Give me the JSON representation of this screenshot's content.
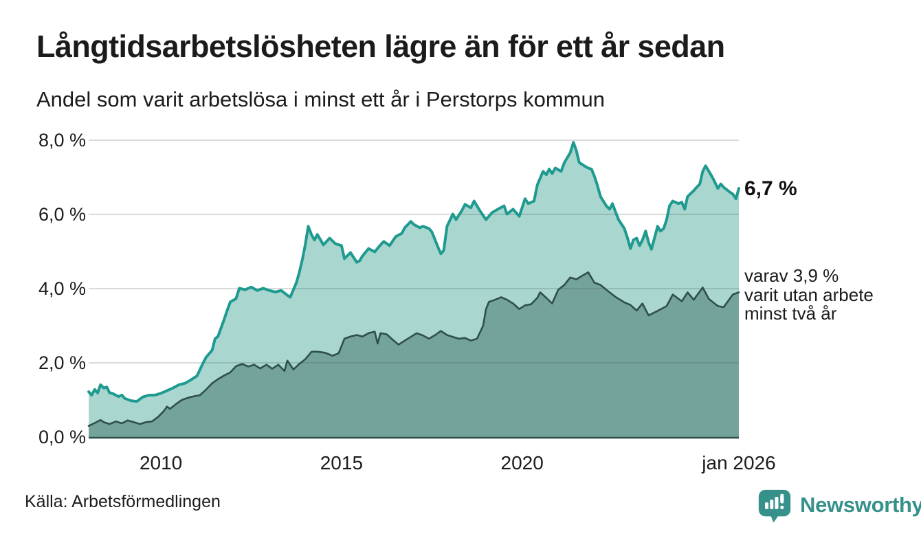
{
  "header": {
    "title": "Långtidsarbetslösheten lägre än för ett år sedan",
    "subtitle": "Andel som varit arbetslösa i minst ett år i Perstorps kommun"
  },
  "annotations": {
    "end_value": "6,7 %",
    "note_lines": [
      "varav 3,9 %",
      "varit utan arbete",
      "minst två år"
    ]
  },
  "footer": {
    "source": "Källa: Arbetsförmedlingen",
    "logo_text": "Newsworthy"
  },
  "colors": {
    "brand_teal": "#35918a",
    "line_1yr": "#1e9a8f",
    "fill_1yr": "#aad6d0",
    "line_2yr": "#2f4f4a",
    "fill_2yr": "#74a39c",
    "axis": "#2f4f4a",
    "grid": "#dfe4e4"
  },
  "chart_data": {
    "type": "area",
    "title": "Långtidsarbetslösheten lägre än för ett år sedan",
    "subtitle": "Andel som varit arbetslösa i minst ett år i Perstorps kommun",
    "unit": "%",
    "grid": true,
    "x_range": [
      2008,
      2026
    ],
    "ylim": [
      0,
      8
    ],
    "y_axis": {
      "ticks": [
        "8,0 %",
        "6,0 %",
        "4,0 %",
        "2,0 %",
        "0,0 %"
      ],
      "values": [
        8,
        6,
        4,
        2,
        0
      ]
    },
    "x_axis": {
      "ticks": [
        {
          "label": "2010",
          "year": 2010
        },
        {
          "label": "2015",
          "year": 2015
        },
        {
          "label": "2020",
          "year": 2020
        },
        {
          "label": "jan 2026",
          "year": 2026
        }
      ]
    },
    "series": [
      {
        "name": "Arbetslösa minst ett år",
        "end_label": "6,7 %",
        "color": "#1e9a8f",
        "fill": "#aad6d0",
        "points": [
          [
            2008.0,
            1.22
          ],
          [
            2008.08,
            1.13
          ],
          [
            2008.17,
            1.28
          ],
          [
            2008.25,
            1.19
          ],
          [
            2008.33,
            1.41
          ],
          [
            2008.42,
            1.32
          ],
          [
            2008.5,
            1.35
          ],
          [
            2008.58,
            1.19
          ],
          [
            2008.67,
            1.17
          ],
          [
            2008.83,
            1.09
          ],
          [
            2008.92,
            1.13
          ],
          [
            2009.0,
            1.04
          ],
          [
            2009.17,
            0.98
          ],
          [
            2009.33,
            0.96
          ],
          [
            2009.5,
            1.08
          ],
          [
            2009.67,
            1.13
          ],
          [
            2009.83,
            1.13
          ],
          [
            2010.0,
            1.18
          ],
          [
            2010.17,
            1.25
          ],
          [
            2010.33,
            1.32
          ],
          [
            2010.5,
            1.41
          ],
          [
            2010.67,
            1.45
          ],
          [
            2010.83,
            1.54
          ],
          [
            2011.0,
            1.65
          ],
          [
            2011.17,
            2.0
          ],
          [
            2011.25,
            2.15
          ],
          [
            2011.42,
            2.34
          ],
          [
            2011.5,
            2.65
          ],
          [
            2011.58,
            2.71
          ],
          [
            2011.75,
            3.17
          ],
          [
            2011.83,
            3.4
          ],
          [
            2011.92,
            3.64
          ],
          [
            2012.08,
            3.73
          ],
          [
            2012.17,
            4.01
          ],
          [
            2012.33,
            3.97
          ],
          [
            2012.5,
            4.04
          ],
          [
            2012.67,
            3.95
          ],
          [
            2012.83,
            4.01
          ],
          [
            2013.0,
            3.95
          ],
          [
            2013.17,
            3.91
          ],
          [
            2013.33,
            3.95
          ],
          [
            2013.5,
            3.82
          ],
          [
            2013.58,
            3.77
          ],
          [
            2013.75,
            4.16
          ],
          [
            2013.83,
            4.43
          ],
          [
            2013.92,
            4.8
          ],
          [
            2014.0,
            5.2
          ],
          [
            2014.08,
            5.68
          ],
          [
            2014.17,
            5.45
          ],
          [
            2014.25,
            5.31
          ],
          [
            2014.33,
            5.46
          ],
          [
            2014.5,
            5.18
          ],
          [
            2014.67,
            5.36
          ],
          [
            2014.83,
            5.21
          ],
          [
            2015.0,
            5.16
          ],
          [
            2015.08,
            4.81
          ],
          [
            2015.25,
            4.97
          ],
          [
            2015.42,
            4.71
          ],
          [
            2015.5,
            4.75
          ],
          [
            2015.58,
            4.88
          ],
          [
            2015.75,
            5.08
          ],
          [
            2015.92,
            4.99
          ],
          [
            2016.08,
            5.18
          ],
          [
            2016.17,
            5.27
          ],
          [
            2016.33,
            5.16
          ],
          [
            2016.5,
            5.4
          ],
          [
            2016.67,
            5.49
          ],
          [
            2016.75,
            5.64
          ],
          [
            2016.92,
            5.81
          ],
          [
            2017.0,
            5.73
          ],
          [
            2017.17,
            5.64
          ],
          [
            2017.25,
            5.68
          ],
          [
            2017.42,
            5.62
          ],
          [
            2017.5,
            5.53
          ],
          [
            2017.67,
            5.12
          ],
          [
            2017.75,
            4.94
          ],
          [
            2017.83,
            5.03
          ],
          [
            2017.92,
            5.68
          ],
          [
            2018.08,
            6.01
          ],
          [
            2018.17,
            5.86
          ],
          [
            2018.33,
            6.1
          ],
          [
            2018.42,
            6.27
          ],
          [
            2018.58,
            6.18
          ],
          [
            2018.67,
            6.36
          ],
          [
            2018.83,
            6.1
          ],
          [
            2019.0,
            5.86
          ],
          [
            2019.17,
            6.05
          ],
          [
            2019.33,
            6.14
          ],
          [
            2019.5,
            6.23
          ],
          [
            2019.58,
            6.01
          ],
          [
            2019.75,
            6.14
          ],
          [
            2019.92,
            5.95
          ],
          [
            2020.08,
            6.42
          ],
          [
            2020.17,
            6.29
          ],
          [
            2020.33,
            6.36
          ],
          [
            2020.42,
            6.79
          ],
          [
            2020.58,
            7.16
          ],
          [
            2020.67,
            7.07
          ],
          [
            2020.75,
            7.22
          ],
          [
            2020.83,
            7.1
          ],
          [
            2020.92,
            7.25
          ],
          [
            2021.08,
            7.16
          ],
          [
            2021.17,
            7.4
          ],
          [
            2021.33,
            7.66
          ],
          [
            2021.42,
            7.94
          ],
          [
            2021.5,
            7.72
          ],
          [
            2021.58,
            7.4
          ],
          [
            2021.75,
            7.29
          ],
          [
            2021.83,
            7.25
          ],
          [
            2021.92,
            7.22
          ],
          [
            2022.0,
            7.03
          ],
          [
            2022.08,
            6.79
          ],
          [
            2022.17,
            6.48
          ],
          [
            2022.33,
            6.23
          ],
          [
            2022.42,
            6.14
          ],
          [
            2022.5,
            6.29
          ],
          [
            2022.58,
            6.08
          ],
          [
            2022.67,
            5.86
          ],
          [
            2022.83,
            5.62
          ],
          [
            2022.92,
            5.36
          ],
          [
            2023.0,
            5.08
          ],
          [
            2023.08,
            5.31
          ],
          [
            2023.17,
            5.36
          ],
          [
            2023.25,
            5.16
          ],
          [
            2023.33,
            5.31
          ],
          [
            2023.42,
            5.55
          ],
          [
            2023.5,
            5.25
          ],
          [
            2023.58,
            5.06
          ],
          [
            2023.75,
            5.68
          ],
          [
            2023.83,
            5.55
          ],
          [
            2023.92,
            5.62
          ],
          [
            2024.0,
            5.86
          ],
          [
            2024.08,
            6.23
          ],
          [
            2024.17,
            6.36
          ],
          [
            2024.33,
            6.29
          ],
          [
            2024.42,
            6.33
          ],
          [
            2024.5,
            6.14
          ],
          [
            2024.58,
            6.48
          ],
          [
            2024.75,
            6.64
          ],
          [
            2024.83,
            6.73
          ],
          [
            2024.92,
            6.82
          ],
          [
            2025.0,
            7.16
          ],
          [
            2025.08,
            7.31
          ],
          [
            2025.25,
            7.03
          ],
          [
            2025.33,
            6.88
          ],
          [
            2025.42,
            6.7
          ],
          [
            2025.5,
            6.82
          ],
          [
            2025.58,
            6.73
          ],
          [
            2025.75,
            6.6
          ],
          [
            2025.83,
            6.55
          ],
          [
            2025.92,
            6.42
          ],
          [
            2026.0,
            6.7
          ]
        ]
      },
      {
        "name": "varav utan arbete minst två år",
        "end_label": "3,9 %",
        "color": "#2f4f4a",
        "fill": "#74a39c",
        "points": [
          [
            2008.0,
            0.3
          ],
          [
            2008.17,
            0.38
          ],
          [
            2008.33,
            0.46
          ],
          [
            2008.42,
            0.4
          ],
          [
            2008.58,
            0.35
          ],
          [
            2008.75,
            0.42
          ],
          [
            2008.92,
            0.37
          ],
          [
            2009.08,
            0.45
          ],
          [
            2009.25,
            0.4
          ],
          [
            2009.42,
            0.35
          ],
          [
            2009.58,
            0.4
          ],
          [
            2009.75,
            0.42
          ],
          [
            2009.92,
            0.54
          ],
          [
            2010.08,
            0.7
          ],
          [
            2010.17,
            0.82
          ],
          [
            2010.25,
            0.76
          ],
          [
            2010.42,
            0.89
          ],
          [
            2010.58,
            1.0
          ],
          [
            2010.75,
            1.06
          ],
          [
            2010.92,
            1.1
          ],
          [
            2011.08,
            1.13
          ],
          [
            2011.25,
            1.28
          ],
          [
            2011.42,
            1.45
          ],
          [
            2011.58,
            1.56
          ],
          [
            2011.75,
            1.66
          ],
          [
            2011.92,
            1.74
          ],
          [
            2012.08,
            1.91
          ],
          [
            2012.25,
            1.97
          ],
          [
            2012.42,
            1.9
          ],
          [
            2012.58,
            1.95
          ],
          [
            2012.75,
            1.85
          ],
          [
            2012.92,
            1.95
          ],
          [
            2013.08,
            1.84
          ],
          [
            2013.25,
            1.95
          ],
          [
            2013.42,
            1.78
          ],
          [
            2013.5,
            2.06
          ],
          [
            2013.67,
            1.82
          ],
          [
            2013.83,
            1.97
          ],
          [
            2014.0,
            2.1
          ],
          [
            2014.17,
            2.3
          ],
          [
            2014.33,
            2.3
          ],
          [
            2014.5,
            2.28
          ],
          [
            2014.58,
            2.26
          ],
          [
            2014.75,
            2.19
          ],
          [
            2014.92,
            2.26
          ],
          [
            2015.08,
            2.65
          ],
          [
            2015.25,
            2.71
          ],
          [
            2015.42,
            2.75
          ],
          [
            2015.58,
            2.71
          ],
          [
            2015.75,
            2.8
          ],
          [
            2015.92,
            2.84
          ],
          [
            2016.0,
            2.52
          ],
          [
            2016.08,
            2.8
          ],
          [
            2016.25,
            2.77
          ],
          [
            2016.42,
            2.62
          ],
          [
            2016.58,
            2.49
          ],
          [
            2016.75,
            2.6
          ],
          [
            2016.92,
            2.7
          ],
          [
            2017.08,
            2.8
          ],
          [
            2017.25,
            2.74
          ],
          [
            2017.42,
            2.65
          ],
          [
            2017.58,
            2.74
          ],
          [
            2017.75,
            2.86
          ],
          [
            2017.92,
            2.75
          ],
          [
            2018.08,
            2.7
          ],
          [
            2018.25,
            2.65
          ],
          [
            2018.42,
            2.67
          ],
          [
            2018.58,
            2.6
          ],
          [
            2018.75,
            2.65
          ],
          [
            2018.92,
            3.0
          ],
          [
            2019.0,
            3.45
          ],
          [
            2019.08,
            3.64
          ],
          [
            2019.25,
            3.7
          ],
          [
            2019.42,
            3.77
          ],
          [
            2019.58,
            3.7
          ],
          [
            2019.75,
            3.6
          ],
          [
            2019.92,
            3.45
          ],
          [
            2020.08,
            3.55
          ],
          [
            2020.25,
            3.58
          ],
          [
            2020.42,
            3.75
          ],
          [
            2020.5,
            3.9
          ],
          [
            2020.67,
            3.75
          ],
          [
            2020.83,
            3.6
          ],
          [
            2021.0,
            3.97
          ],
          [
            2021.17,
            4.1
          ],
          [
            2021.33,
            4.3
          ],
          [
            2021.5,
            4.25
          ],
          [
            2021.67,
            4.35
          ],
          [
            2021.83,
            4.44
          ],
          [
            2022.0,
            4.16
          ],
          [
            2022.17,
            4.1
          ],
          [
            2022.33,
            3.97
          ],
          [
            2022.58,
            3.78
          ],
          [
            2022.83,
            3.63
          ],
          [
            2023.0,
            3.56
          ],
          [
            2023.17,
            3.41
          ],
          [
            2023.33,
            3.6
          ],
          [
            2023.5,
            3.28
          ],
          [
            2023.75,
            3.4
          ],
          [
            2024.0,
            3.53
          ],
          [
            2024.17,
            3.84
          ],
          [
            2024.42,
            3.66
          ],
          [
            2024.58,
            3.9
          ],
          [
            2024.75,
            3.7
          ],
          [
            2025.0,
            4.03
          ],
          [
            2025.17,
            3.72
          ],
          [
            2025.42,
            3.53
          ],
          [
            2025.58,
            3.5
          ],
          [
            2025.83,
            3.84
          ],
          [
            2026.0,
            3.9
          ]
        ]
      }
    ],
    "annotations": [
      "6,7 %",
      "varav 3,9 % varit utan arbete minst två år"
    ],
    "legend_position": "none",
    "source": "Källa: Arbetsförmedlingen"
  }
}
